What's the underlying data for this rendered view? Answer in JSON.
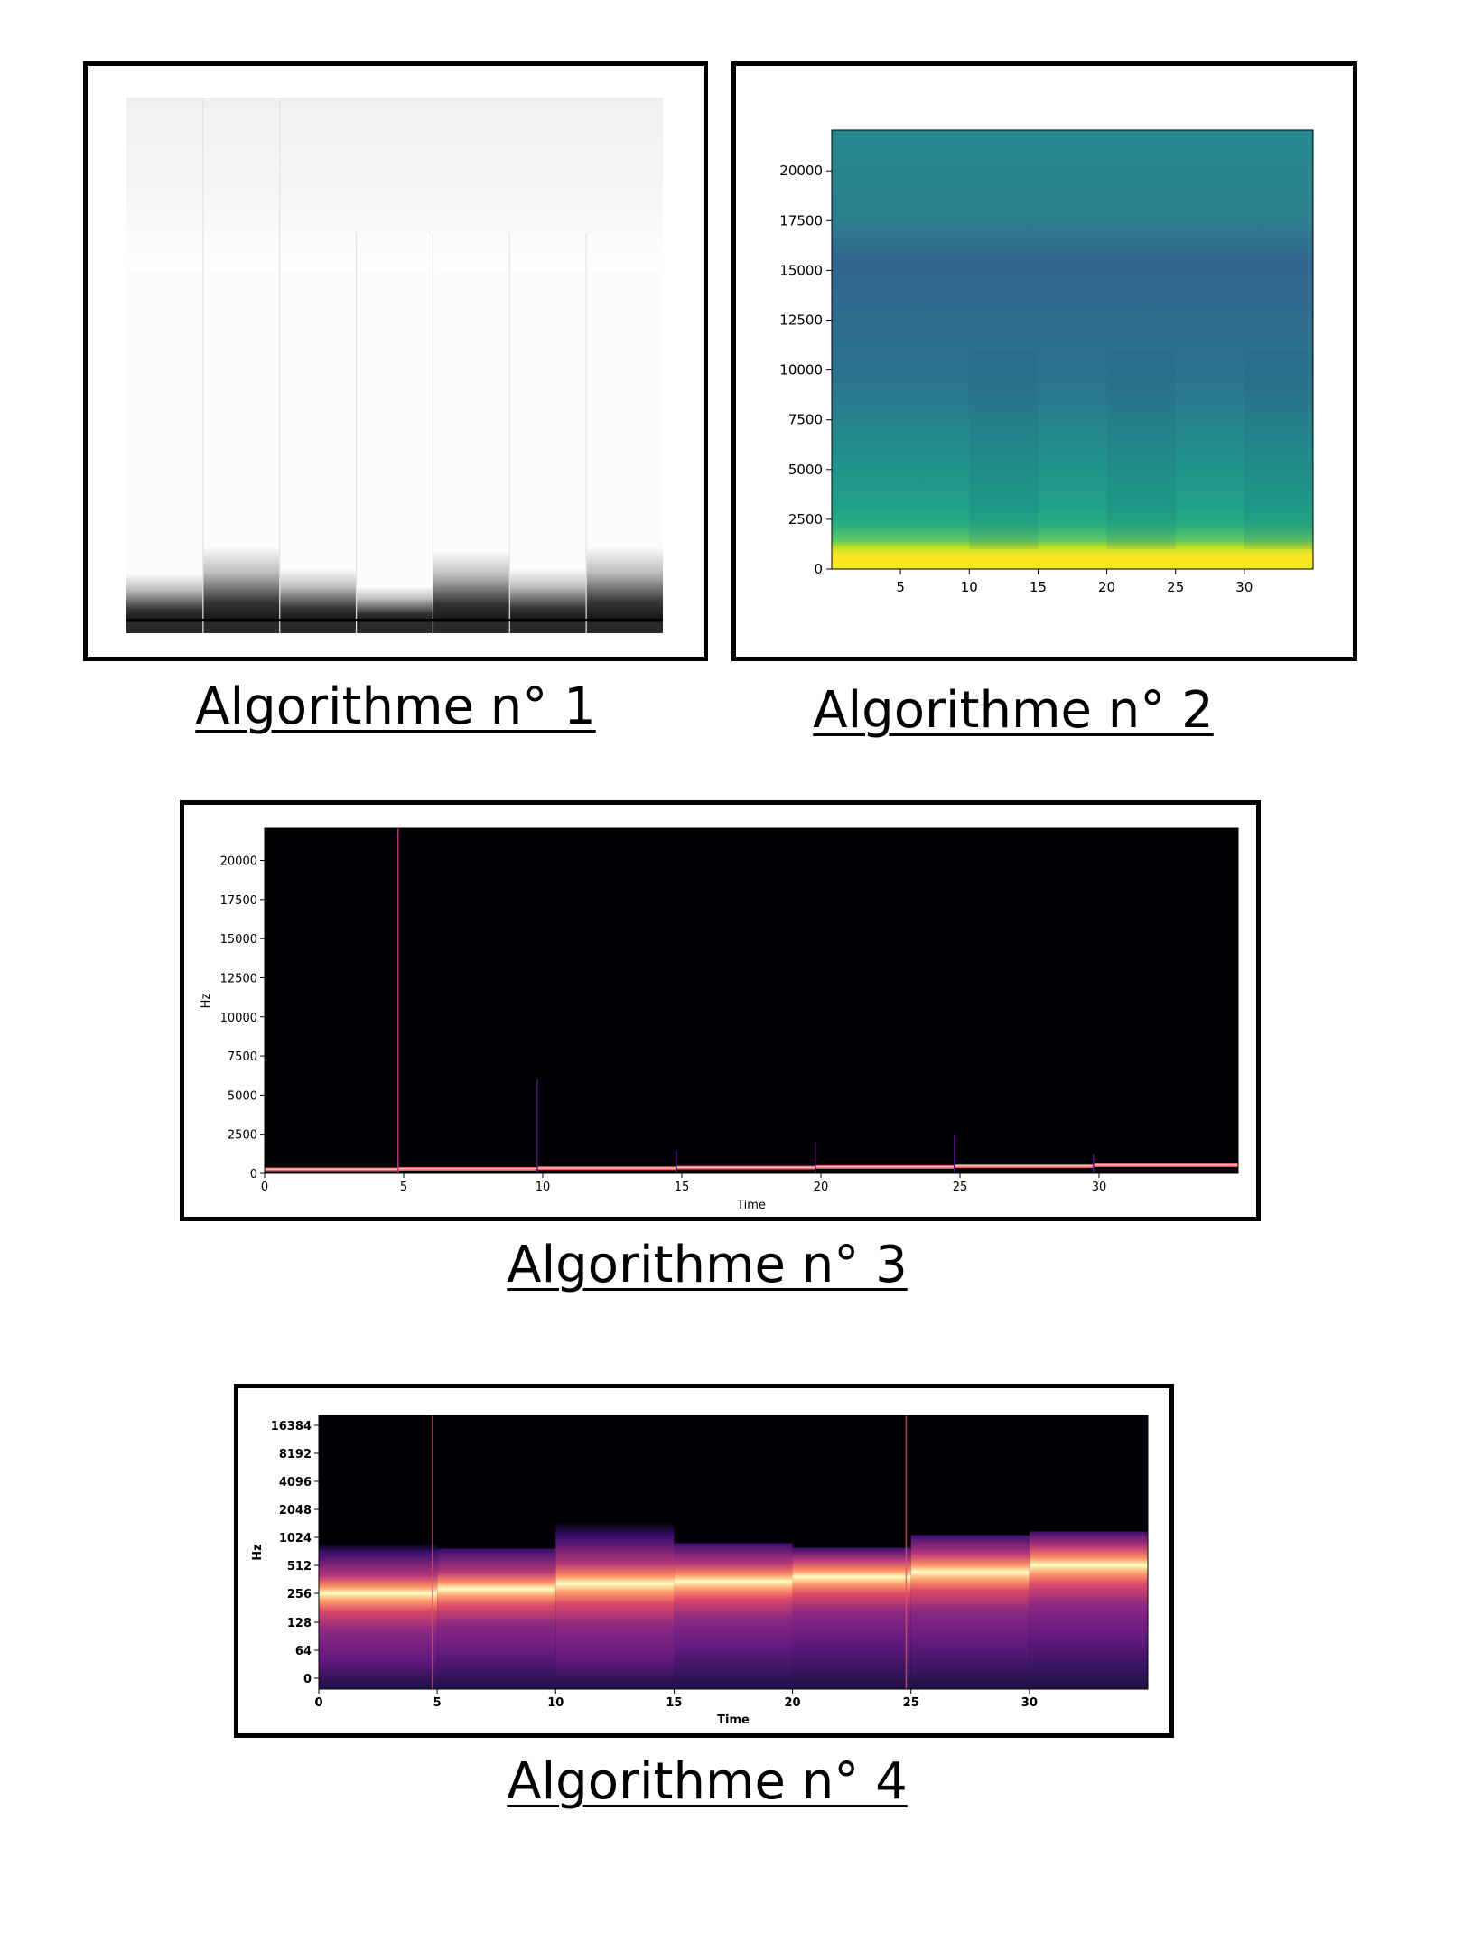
{
  "captions": [
    "Algorithme n° 1",
    "Algorithme n° 2",
    "Algorithme n° 3",
    "Algorithme n° 4"
  ],
  "chart_data": [
    {
      "type": "heatmap",
      "title": "",
      "xlabel": "",
      "ylabel": "",
      "colormap": "gray_r",
      "axes_visible": false,
      "segments": 7
    },
    {
      "type": "heatmap",
      "title": "",
      "xlabel": "",
      "ylabel": "",
      "colormap": "viridis",
      "xlim": [
        0,
        35
      ],
      "ylim": [
        0,
        22050
      ],
      "xticks": [
        5,
        10,
        15,
        20,
        25,
        30
      ],
      "yticks": [
        0,
        2500,
        5000,
        7500,
        10000,
        12500,
        15000,
        17500,
        20000
      ]
    },
    {
      "type": "heatmap",
      "title": "",
      "xlabel": "Time",
      "ylabel": "Hz",
      "colormap": "magma",
      "xlim": [
        0,
        35
      ],
      "ylim": [
        0,
        22050
      ],
      "xticks": [
        0,
        5,
        10,
        15,
        20,
        25,
        30
      ],
      "yticks": [
        0,
        2500,
        5000,
        7500,
        10000,
        12500,
        15000,
        17500,
        20000
      ],
      "onsets": [
        4.8,
        9.8,
        14.8,
        19.8,
        24.8,
        29.8
      ],
      "fundamental_hz": [
        260,
        290,
        330,
        370,
        410,
        460,
        520
      ]
    },
    {
      "type": "heatmap",
      "title": "",
      "xlabel": "Time",
      "ylabel": "Hz",
      "colormap": "magma",
      "y_scale": "log",
      "xlim": [
        0,
        35
      ],
      "xticks": [
        0,
        5,
        10,
        15,
        20,
        25,
        30
      ],
      "yticks": [
        0,
        64,
        128,
        256,
        512,
        1024,
        2048,
        4096,
        8192,
        16384
      ],
      "segments_end": [
        5,
        10,
        15,
        20,
        25,
        30,
        35
      ],
      "fundamental_hz": [
        260,
        290,
        330,
        350,
        390,
        440,
        520
      ]
    }
  ]
}
